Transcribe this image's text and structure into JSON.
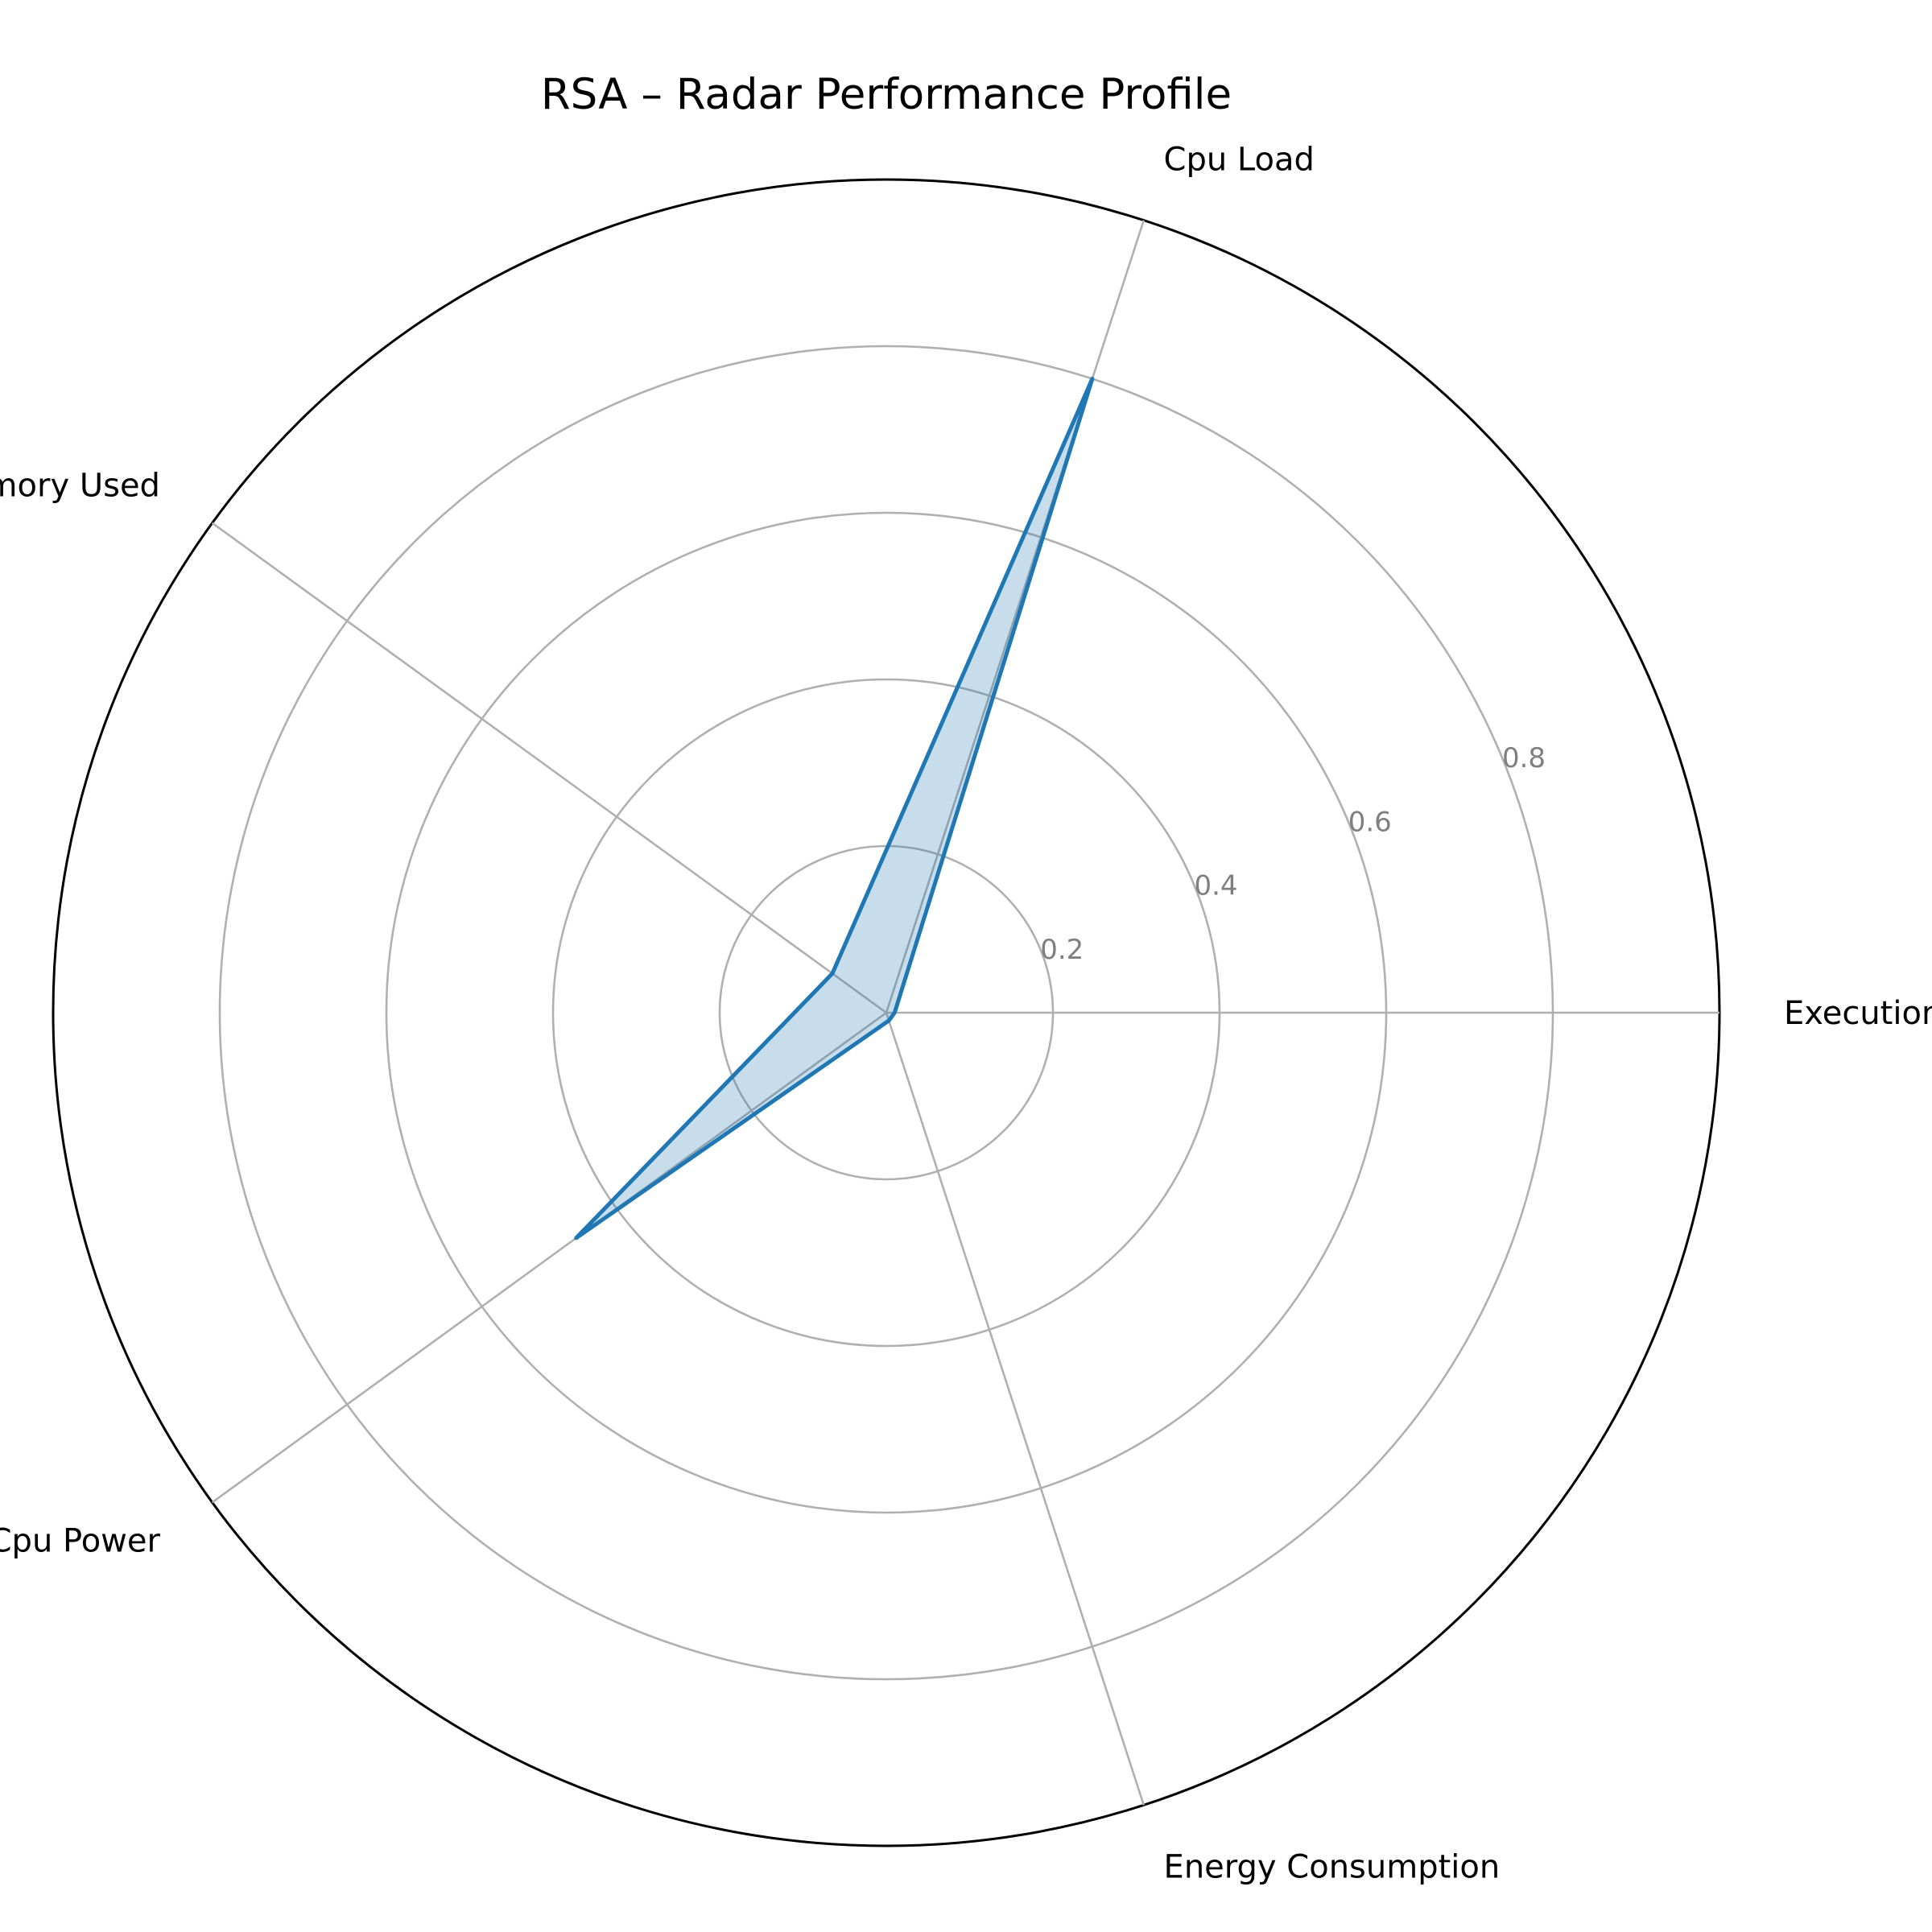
{
  "chart_data": {
    "type": "radar",
    "title": "RSA – Radar Performance Profile",
    "axes": [
      "Execution Time",
      "Cpu Load",
      "Memory Used",
      "Cpu Power",
      "Energy Consumption"
    ],
    "series": [
      {
        "values": [
          0.01,
          0.8,
          0.08,
          0.46,
          0.01
        ]
      }
    ],
    "rlim": [
      0,
      1.0
    ],
    "rticks": [
      0.2,
      0.4,
      0.6,
      0.8
    ],
    "rtick_labels": [
      "0.2",
      "0.4",
      "0.6",
      "0.8"
    ],
    "grid": true,
    "colors": {
      "line": "#1f77b4",
      "fill": "#1f77b4",
      "grid": "#b0b0b0",
      "outer": "#000000",
      "tick": "#7f7f7f"
    }
  }
}
